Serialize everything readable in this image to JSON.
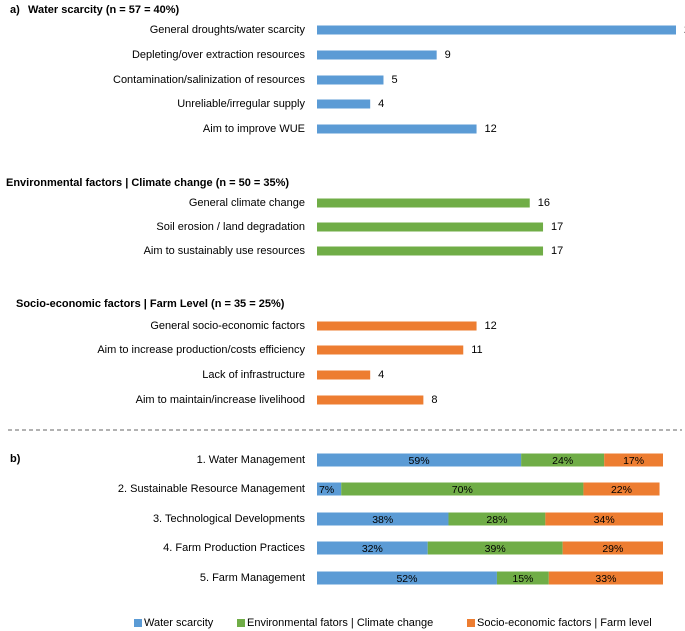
{
  "chart_data": [
    {
      "type": "bar",
      "orientation": "horizontal",
      "panel_label": "a)",
      "groups": [
        {
          "title": "Water scarcity (n = 57 = 40%)",
          "color": "#5b9bd5",
          "categories": [
            "General droughts/water scarcity",
            "Depleting/over extraction resources",
            "Contamination/salinization of resources",
            "Unreliable/irregular supply",
            "Aim to improve WUE"
          ],
          "values": [
            27,
            9,
            5,
            4,
            12
          ]
        },
        {
          "title": "Environmental factors | Climate change (n = 50 = 35%)",
          "color": "#70ad47",
          "categories": [
            "General climate change",
            "Soil erosion / land degradation",
            "Aim to sustainably use resources"
          ],
          "values": [
            16,
            17,
            17
          ]
        },
        {
          "title": "Socio-economic factors | Farm Level (n = 35 = 25%)",
          "color": "#ed7d31",
          "categories": [
            "General socio-economic factors",
            "Aim to increase production/costs efficiency",
            "Lack of infrastructure",
            "Aim to maintain/increase livelihood"
          ],
          "values": [
            12,
            11,
            4,
            8
          ]
        }
      ],
      "xlim": [
        0,
        27
      ]
    },
    {
      "type": "bar",
      "orientation": "horizontal",
      "stacked": "percent",
      "panel_label": "b)",
      "categories": [
        "1. Water Management",
        "2. Sustainable Resource Management",
        "3. Technological Developments",
        "4. Farm Production Practices",
        "5. Farm Management"
      ],
      "series": [
        {
          "name": "Water scarcity",
          "color": "#5b9bd5",
          "values": [
            59,
            7,
            38,
            32,
            52
          ]
        },
        {
          "name": "Environmental fators | Climate change",
          "color": "#70ad47",
          "values": [
            24,
            70,
            28,
            39,
            15
          ]
        },
        {
          "name": "Socio-economic factors | Farm level",
          "color": "#ed7d31",
          "values": [
            17,
            22,
            34,
            29,
            33
          ]
        }
      ],
      "legend": "bottom",
      "xlim": [
        0,
        100
      ]
    }
  ]
}
